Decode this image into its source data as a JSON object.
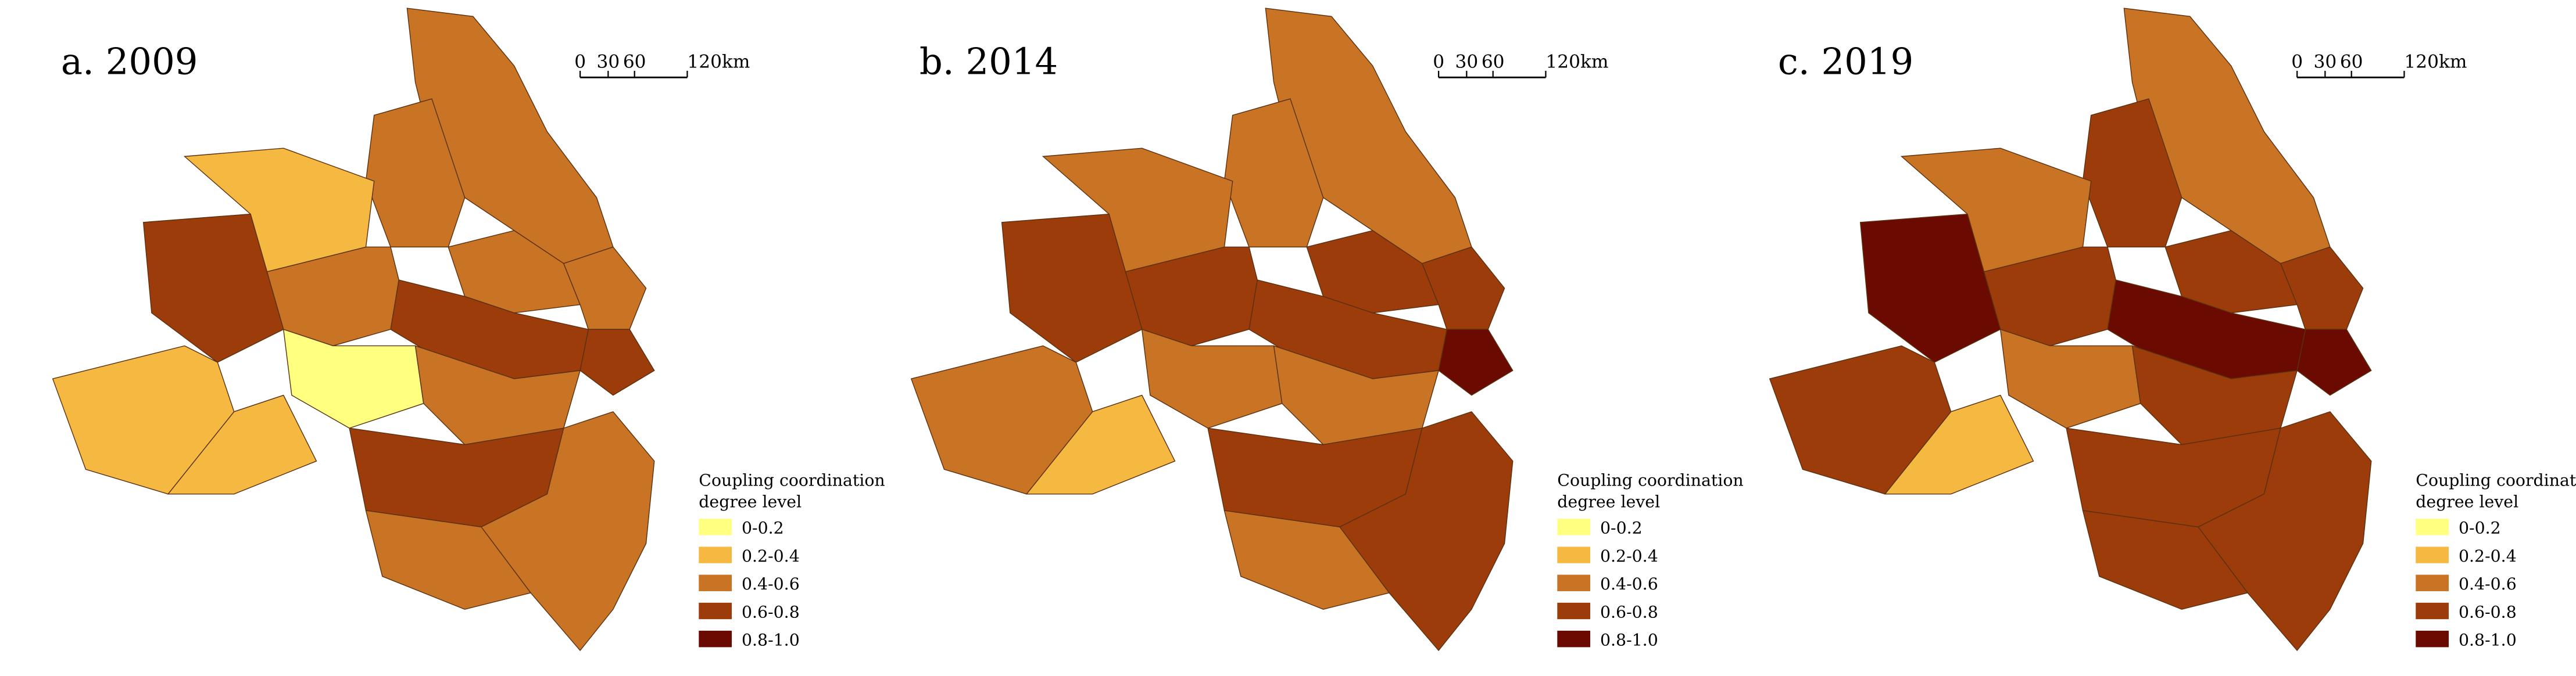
{
  "panels": [
    {
      "title": "a. 2009"
    },
    {
      "title": "b. 2014"
    },
    {
      "title": "c. 2019"
    }
  ],
  "scale_bar": {
    "labels": [
      "0",
      "30",
      "60",
      "120km"
    ]
  },
  "legend": {
    "title_lines": [
      "Coupling coordination",
      "degree level"
    ],
    "items": [
      {
        "label": "0-0.2",
        "color": "#ffff80"
      },
      {
        "label": "0.2-0.4",
        "color": "#f5b942"
      },
      {
        "label": "0.4-0.6",
        "color": "#c87424"
      },
      {
        "label": "0.6-0.8",
        "color": "#9c3c0a"
      },
      {
        "label": "0.8-1.0",
        "color": "#6b0a00"
      }
    ]
  }
}
